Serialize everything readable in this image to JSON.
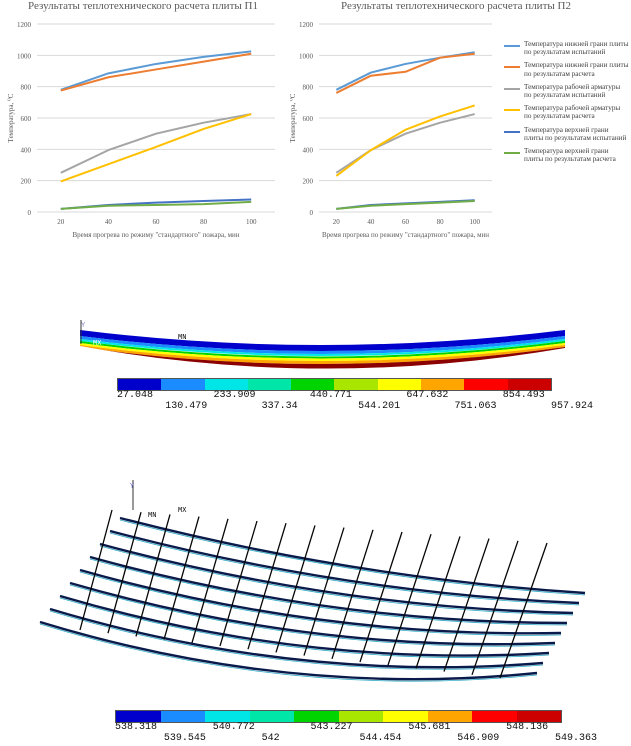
{
  "chart_data": [
    {
      "type": "line",
      "title": "Результаты теплотехнического расчета плиты П1",
      "xlabel": "Время прогрева по режиму \"стандартного\" пожара, мин",
      "ylabel": "Температура, ⁰С",
      "x": [
        20,
        40,
        60,
        80,
        100
      ],
      "xticks": [
        "20",
        "40",
        "60",
        "80",
        "100"
      ],
      "yticks": [
        "0",
        "200",
        "400",
        "600",
        "800",
        "1000",
        "1200"
      ],
      "ylim": [
        0,
        1200
      ],
      "grid": "horizontal",
      "series": [
        {
          "name": "Температура нижней грани плиты по результатам испытаний",
          "color": "#5b9bd5",
          "values": [
            780,
            885,
            945,
            990,
            1025
          ]
        },
        {
          "name": "Температура нижней грани плиты по результатам расчета",
          "color": "#ed7d31",
          "values": [
            775,
            860,
            910,
            960,
            1010
          ]
        },
        {
          "name": "Температура рабочей арматуры по результатам испытаний",
          "color": "#a5a5a5",
          "values": [
            250,
            395,
            500,
            570,
            625
          ]
        },
        {
          "name": "Температура рабочей арматуры по результатам расчета",
          "color": "#ffc000",
          "values": [
            195,
            305,
            415,
            530,
            625
          ]
        },
        {
          "name": "Температура верхней грани плиты по результатам испытаний",
          "color": "#4472c4",
          "values": [
            20,
            45,
            60,
            70,
            80
          ]
        },
        {
          "name": "Температура верхней грани плиты по результатам расчета",
          "color": "#70ad47",
          "values": [
            20,
            40,
            45,
            50,
            65
          ]
        }
      ]
    },
    {
      "type": "line",
      "title": "Результаты теплотехнического расчета плиты П2",
      "xlabel": "Время прогрева по режиму \"стандартного\" пожара, мин",
      "ylabel": "Температура, ⁰С",
      "x": [
        20,
        40,
        60,
        80,
        100
      ],
      "xticks": [
        "20",
        "40",
        "60",
        "80",
        "100"
      ],
      "yticks": [
        "0",
        "200",
        "400",
        "600",
        "800",
        "1000",
        "1200"
      ],
      "ylim": [
        0,
        1200
      ],
      "grid": "horizontal",
      "legend": "right",
      "series": [
        {
          "name": "Температура нижней грани плиты по результатам испытаний",
          "color": "#5b9bd5",
          "values": [
            780,
            890,
            945,
            985,
            1020
          ]
        },
        {
          "name": "Температура нижней грани плиты по результатам расчета",
          "color": "#ed7d31",
          "values": [
            760,
            870,
            895,
            985,
            1010
          ]
        },
        {
          "name": "Температура рабочей арматуры по результатам испытаний",
          "color": "#a5a5a5",
          "values": [
            250,
            395,
            500,
            570,
            625
          ]
        },
        {
          "name": "Температура рабочей арматуры по результатам расчета",
          "color": "#ffc000",
          "values": [
            230,
            395,
            525,
            610,
            680
          ]
        },
        {
          "name": "Температура верхней грани плиты по результатам испытаний",
          "color": "#4472c4",
          "values": [
            20,
            45,
            55,
            65,
            75
          ]
        },
        {
          "name": "Температура верхней грани плиты по результатам расчета",
          "color": "#70ad47",
          "values": [
            20,
            40,
            50,
            60,
            70
          ]
        }
      ]
    }
  ],
  "fe_slab": {
    "labels": {
      "axis": "Y",
      "mn": "MN",
      "mx": "MX"
    },
    "legend_values": [
      "27.048",
      "130.479",
      "233.909",
      "337.34",
      "440.771",
      "544.201",
      "647.632",
      "751.063",
      "854.493",
      "957.924"
    ],
    "colors": [
      "#0000cc",
      "#1a8cff",
      "#00e6e6",
      "#00e6a8",
      "#00d400",
      "#a8e600",
      "#ffff00",
      "#ffa500",
      "#ff0000",
      "#cc0000"
    ]
  },
  "fe_rebar": {
    "labels": {
      "axis": "Y",
      "mn": "MN",
      "mx": "MX"
    },
    "legend_values": [
      "538.318",
      "539.545",
      "540.772",
      "542",
      "543.227",
      "544.454",
      "545.681",
      "546.909",
      "548.136",
      "549.363"
    ],
    "colors": [
      "#0000cc",
      "#1a8cff",
      "#00e6e6",
      "#00e6a8",
      "#00d400",
      "#a8e600",
      "#ffff00",
      "#ffa500",
      "#ff0000",
      "#cc0000"
    ]
  }
}
